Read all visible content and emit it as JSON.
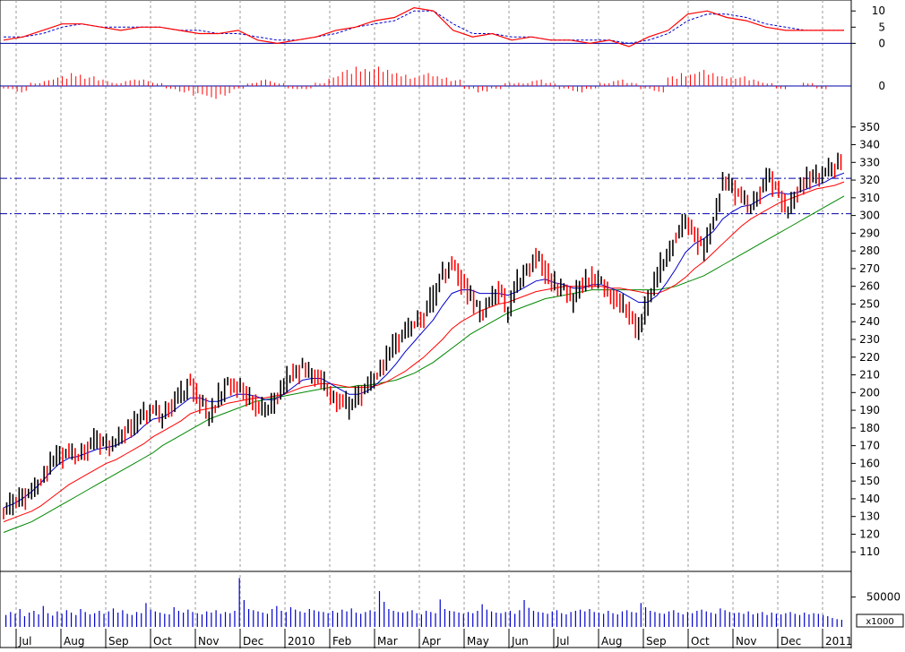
{
  "chart_data": {
    "type": "line",
    "colors": {
      "price_up": "#000000",
      "price_down": "#ff0000",
      "ma_short": "#0000cc",
      "ma_mid": "#ff0000",
      "ma_long": "#008800",
      "oscillator_fast": "#ff0000",
      "oscillator_slow": "#0000cc",
      "histogram": "#ff0000",
      "volume": "#0000cc",
      "support_lines": "#0000aa",
      "grid": "#999999"
    },
    "month_labels": [
      "Jul",
      "Aug",
      "Sep",
      "Oct",
      "Nov",
      "Dec",
      "2010",
      "Feb",
      "Mar",
      "Apr",
      "May",
      "Jun",
      "Jul",
      "Aug",
      "Sep",
      "Oct",
      "Nov",
      "Dec",
      "2011"
    ],
    "oscillator_panel": {
      "ticks": [
        10,
        5,
        0
      ],
      "ylim": [
        -1,
        12
      ],
      "fast_line": [
        1,
        2,
        4,
        6,
        6,
        5,
        4,
        5,
        5,
        4,
        3,
        3,
        4,
        1,
        0,
        1,
        2,
        4,
        5,
        7,
        8,
        11,
        10,
        4,
        2,
        3,
        1,
        2,
        1,
        1,
        0,
        1,
        -1,
        2,
        4,
        9,
        10,
        8,
        7,
        5,
        4,
        4,
        4,
        4
      ],
      "slow_line": [
        2,
        2,
        3,
        5,
        6,
        5,
        5,
        5,
        5,
        4,
        4,
        3,
        3,
        2,
        1,
        1,
        2,
        3,
        5,
        6,
        7,
        10,
        10,
        6,
        3,
        3,
        2,
        2,
        1,
        1,
        1,
        1,
        0,
        1,
        3,
        7,
        9,
        9,
        8,
        6,
        5,
        4,
        4,
        4
      ]
    },
    "histogram_panel": {
      "tick": 0,
      "values": [
        -1,
        -2,
        1,
        2,
        3,
        4,
        3,
        2,
        1,
        2,
        2,
        1,
        -1,
        -2,
        -3,
        -4,
        -3,
        -1,
        1,
        2,
        1,
        -1,
        -1,
        1,
        3,
        5,
        6,
        6,
        5,
        4,
        3,
        4,
        3,
        2,
        -1,
        -2,
        -1,
        1,
        1,
        2,
        1,
        -1,
        -2,
        -1,
        1,
        2,
        1,
        -1,
        -2,
        3,
        4,
        5,
        4,
        3,
        3,
        2,
        1,
        -1,
        0,
        1,
        -1,
        0
      ]
    },
    "price_panel": {
      "ylim": [
        100,
        360
      ],
      "y_ticks": [
        110,
        120,
        130,
        140,
        150,
        160,
        170,
        180,
        190,
        200,
        210,
        220,
        230,
        240,
        250,
        260,
        270,
        280,
        290,
        300,
        310,
        320,
        330,
        340,
        350
      ],
      "horizontal_levels": [
        321,
        301
      ],
      "bars": [
        134,
        137,
        141,
        145,
        152,
        160,
        164,
        166,
        165,
        170,
        172,
        171,
        173,
        179,
        182,
        188,
        190,
        187,
        194,
        199,
        205,
        194,
        188,
        197,
        205,
        202,
        198,
        193,
        190,
        196,
        205,
        212,
        214,
        209,
        206,
        198,
        196,
        192,
        199,
        205,
        212,
        220,
        228,
        235,
        240,
        245,
        254,
        268,
        272,
        263,
        253,
        245,
        252,
        257,
        248,
        262,
        270,
        276,
        268,
        260,
        258,
        253,
        262,
        265,
        261,
        254,
        250,
        244,
        237,
        253,
        267,
        278,
        290,
        295,
        288,
        283,
        300,
        318,
        315,
        310,
        306,
        315,
        320,
        312,
        304,
        315,
        320,
        322,
        325,
        328,
        333
      ],
      "ma_short": [
        135,
        137,
        140,
        144,
        149,
        155,
        160,
        163,
        164,
        166,
        168,
        169,
        170,
        173,
        176,
        181,
        185,
        186,
        189,
        193,
        197,
        197,
        195,
        195,
        197,
        199,
        199,
        198,
        196,
        196,
        199,
        203,
        207,
        208,
        208,
        205,
        202,
        199,
        199,
        201,
        205,
        210,
        216,
        223,
        229,
        235,
        241,
        249,
        256,
        258,
        258,
        256,
        256,
        256,
        255,
        257,
        260,
        263,
        264,
        262,
        261,
        259,
        259,
        261,
        261,
        259,
        257,
        254,
        251,
        251,
        255,
        262,
        270,
        279,
        284,
        287,
        291,
        298,
        302,
        305,
        306,
        309,
        312,
        313,
        312,
        313,
        315,
        317,
        319,
        322,
        324
      ],
      "ma_mid": [
        127,
        129,
        131,
        133,
        136,
        140,
        144,
        148,
        151,
        154,
        157,
        160,
        162,
        165,
        168,
        171,
        175,
        178,
        181,
        184,
        188,
        190,
        191,
        192,
        194,
        195,
        196,
        197,
        197,
        198,
        199,
        201,
        203,
        204,
        205,
        205,
        204,
        203,
        203,
        203,
        204,
        206,
        209,
        212,
        216,
        220,
        225,
        230,
        236,
        240,
        243,
        246,
        248,
        250,
        251,
        253,
        255,
        257,
        258,
        259,
        260,
        260,
        260,
        260,
        260,
        259,
        259,
        258,
        257,
        256,
        256,
        258,
        261,
        265,
        270,
        274,
        279,
        284,
        289,
        294,
        298,
        301,
        304,
        307,
        309,
        311,
        313,
        315,
        316,
        317,
        319
      ],
      "ma_long": [
        121,
        123,
        125,
        127,
        130,
        133,
        136,
        139,
        142,
        145,
        148,
        151,
        154,
        157,
        160,
        163,
        166,
        170,
        173,
        176,
        179,
        182,
        185,
        187,
        189,
        191,
        193,
        195,
        196,
        197,
        198,
        199,
        200,
        201,
        202,
        203,
        203,
        203,
        204,
        204,
        205,
        206,
        207,
        209,
        211,
        214,
        217,
        221,
        225,
        229,
        233,
        236,
        239,
        242,
        245,
        247,
        249,
        251,
        253,
        254,
        255,
        256,
        257,
        258,
        258,
        258,
        258,
        258,
        258,
        258,
        258,
        259,
        260,
        262,
        264,
        266,
        269,
        272,
        275,
        278,
        281,
        284,
        287,
        290,
        293,
        296,
        299,
        302,
        305,
        308,
        311
      ]
    },
    "volume_panel": {
      "tick_label": "50000",
      "multiplier_label": "x1000",
      "ylim": [
        0,
        90000
      ],
      "values": [
        20,
        25,
        22,
        30,
        18,
        24,
        27,
        21,
        35,
        23,
        19,
        26,
        22,
        28,
        24,
        20,
        30,
        25,
        21,
        23,
        27,
        22,
        26,
        31,
        24,
        28,
        22,
        20,
        25,
        23,
        40,
        29,
        26,
        24,
        22,
        21,
        33,
        27,
        24,
        29,
        25,
        23,
        21,
        26,
        24,
        28,
        22,
        25,
        23,
        27,
        82,
        45,
        30,
        28,
        26,
        24,
        22,
        30,
        35,
        27,
        25,
        33,
        29,
        26,
        24,
        30,
        28,
        26,
        25,
        23,
        27,
        24,
        29,
        26,
        31,
        24,
        22,
        25,
        28,
        26,
        60,
        42,
        30,
        27,
        25,
        24,
        26,
        28,
        23,
        21,
        27,
        25,
        23,
        46,
        30,
        27,
        26,
        24,
        22,
        25,
        23,
        27,
        38,
        29,
        26,
        24,
        23,
        25,
        27,
        22,
        28,
        45,
        32,
        27,
        25,
        24,
        22,
        26,
        28,
        23,
        21,
        25,
        27,
        29,
        26,
        30,
        25,
        24,
        22,
        27,
        23,
        21,
        26,
        28,
        25,
        24,
        40,
        33,
        27,
        25,
        23,
        22,
        26,
        28,
        24,
        21,
        25,
        23,
        27,
        29,
        26,
        24,
        22,
        31,
        28,
        25,
        23,
        24,
        22,
        26,
        21,
        23,
        25,
        20,
        24,
        22,
        21,
        23,
        25,
        22,
        20,
        24,
        21,
        23,
        22,
        20,
        18,
        15,
        13,
        12
      ]
    }
  }
}
